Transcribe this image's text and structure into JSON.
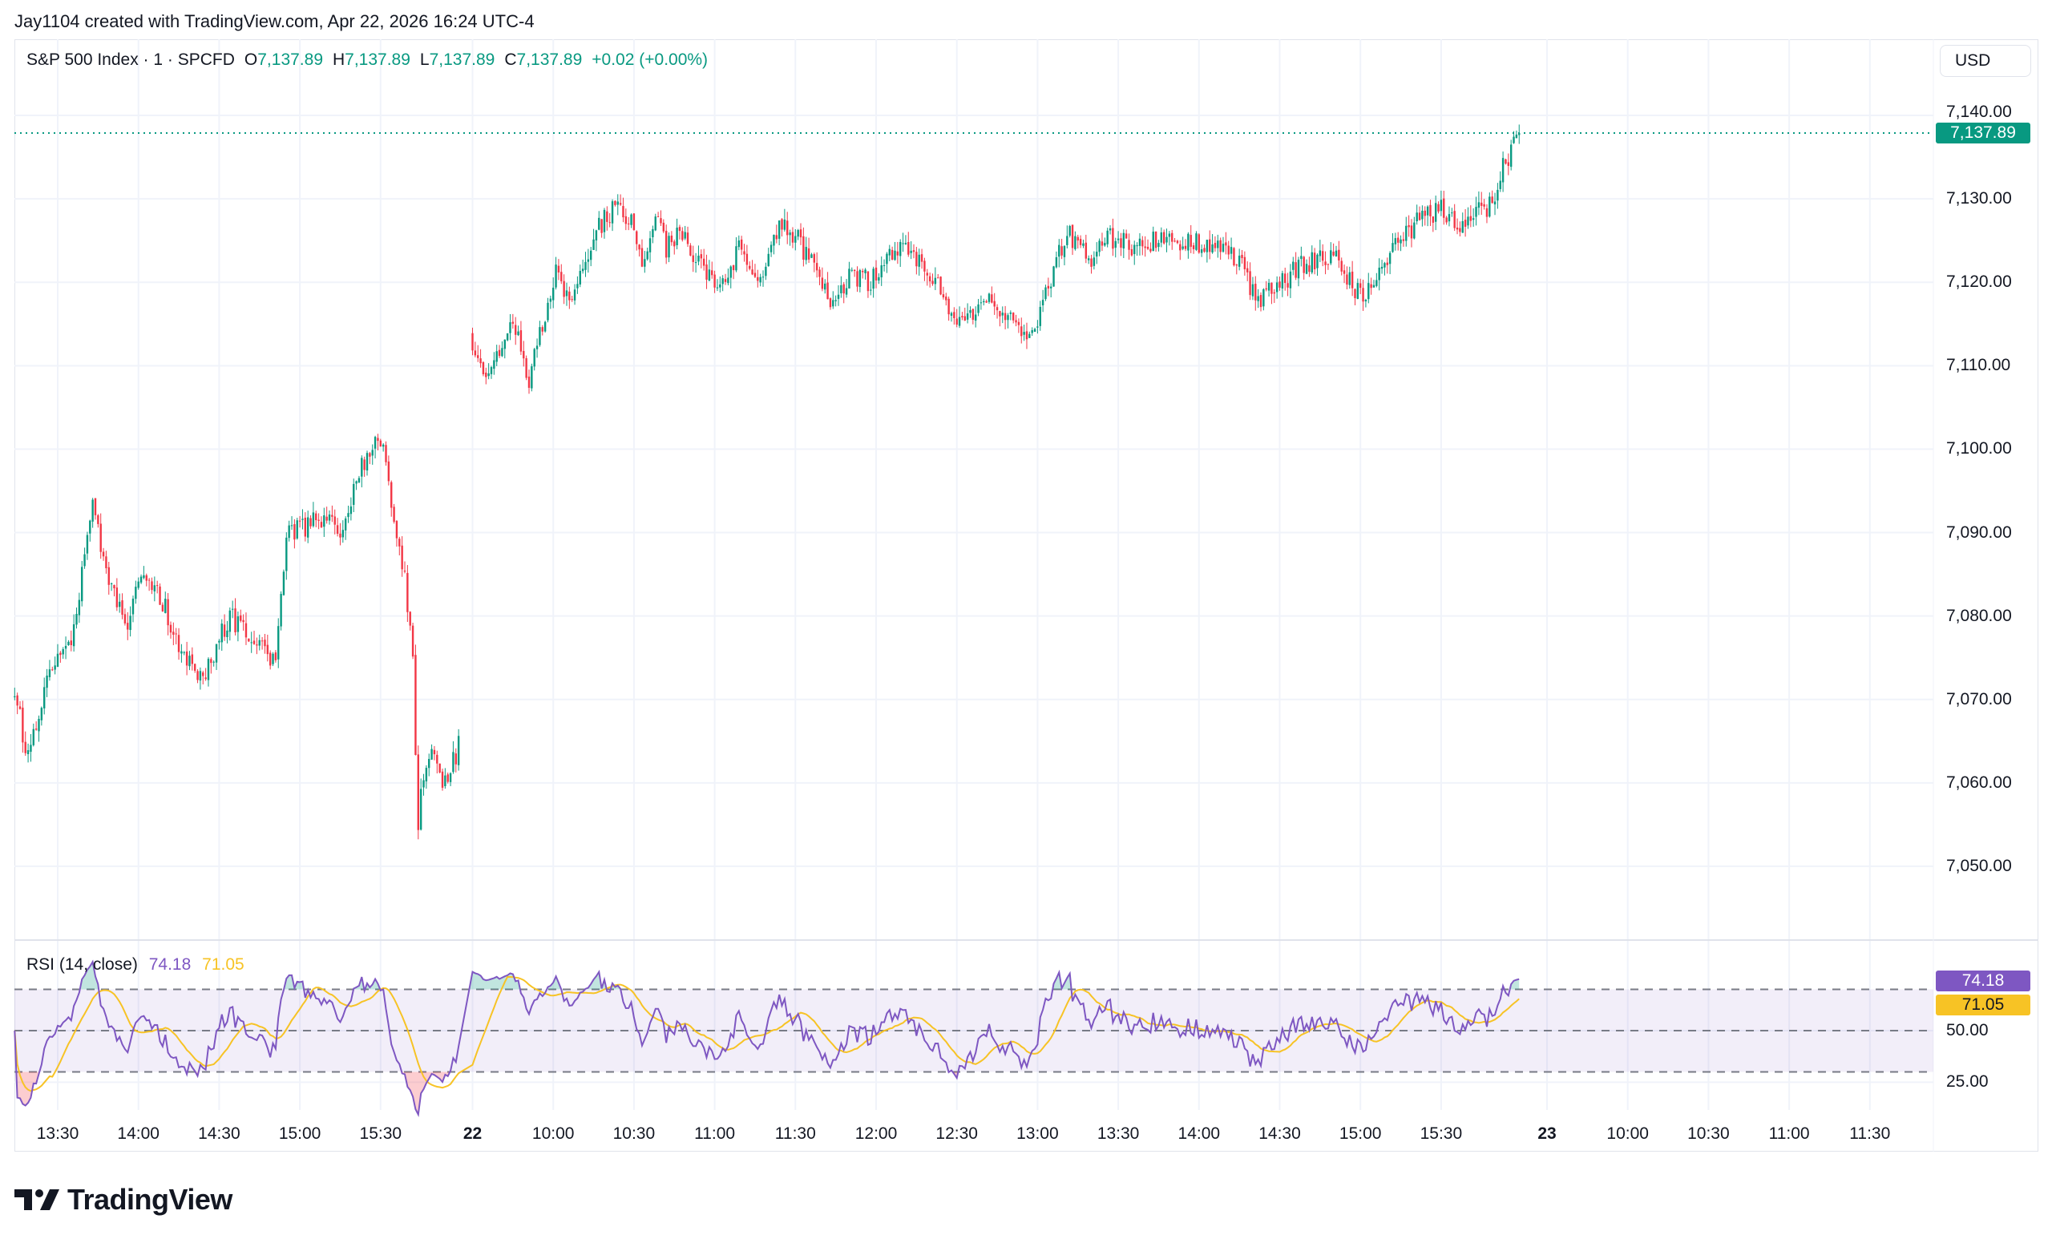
{
  "caption": "Jay1104 created with TradingView.com, Apr 22, 2026 16:24 UTC-4",
  "legend": {
    "symbol": "S&P 500 Index · 1 · SPCFD",
    "o_label": "O",
    "o_value": "7,137.89",
    "h_label": "H",
    "h_value": "7,137.89",
    "l_label": "L",
    "l_value": "7,137.89",
    "c_label": "C",
    "c_value": "7,137.89",
    "change": "+0.02 (+0.00%)"
  },
  "currency_button": "USD",
  "last_price_badge": "7,137.89",
  "rsi": {
    "label": "RSI (14, close)",
    "value": "74.18",
    "ma_value": "71.05",
    "axis_labels": [
      {
        "text": "50.00",
        "value": 50
      },
      {
        "text": "25.00",
        "value": 25
      }
    ],
    "levels": {
      "upper": 70,
      "middle": 50,
      "lower": 30
    }
  },
  "colors": {
    "up": "#089981",
    "down": "#f23645",
    "rsi": "#7e57c2",
    "rsi_ma": "#f7c325",
    "text": "#131722",
    "grid": "#f0f3fa"
  },
  "brand": "TradingView",
  "chart_data": {
    "type": "candlestick",
    "interval": "1 minute",
    "ylim": [
      7041,
      7145
    ],
    "y_ticks": [
      {
        "text": "7,140.00",
        "value": 7140
      },
      {
        "text": "7,130.00",
        "value": 7130
      },
      {
        "text": "7,120.00",
        "value": 7120
      },
      {
        "text": "7,110.00",
        "value": 7110
      },
      {
        "text": "7,100.00",
        "value": 7100
      },
      {
        "text": "7,090.00",
        "value": 7090
      },
      {
        "text": "7,080.00",
        "value": 7080
      },
      {
        "text": "7,070.00",
        "value": 7070
      },
      {
        "text": "7,060.00",
        "value": 7060
      },
      {
        "text": "7,050.00",
        "value": 7050
      }
    ],
    "x_ticks": [
      {
        "text": "13:30",
        "session": 1,
        "time": "13:30",
        "bold": false
      },
      {
        "text": "14:00",
        "session": 1,
        "time": "14:00",
        "bold": false
      },
      {
        "text": "14:30",
        "session": 1,
        "time": "14:30",
        "bold": false
      },
      {
        "text": "15:00",
        "session": 1,
        "time": "15:00",
        "bold": false
      },
      {
        "text": "15:30",
        "session": 1,
        "time": "15:30",
        "bold": false
      },
      {
        "text": "22",
        "session": 2,
        "time": "09:30",
        "bold": true
      },
      {
        "text": "10:00",
        "session": 2,
        "time": "10:00",
        "bold": false
      },
      {
        "text": "10:30",
        "session": 2,
        "time": "10:30",
        "bold": false
      },
      {
        "text": "11:00",
        "session": 2,
        "time": "11:00",
        "bold": false
      },
      {
        "text": "11:30",
        "session": 2,
        "time": "11:30",
        "bold": false
      },
      {
        "text": "12:00",
        "session": 2,
        "time": "12:00",
        "bold": false
      },
      {
        "text": "12:30",
        "session": 2,
        "time": "12:30",
        "bold": false
      },
      {
        "text": "13:00",
        "session": 2,
        "time": "13:00",
        "bold": false
      },
      {
        "text": "13:30",
        "session": 2,
        "time": "13:30",
        "bold": false
      },
      {
        "text": "14:00",
        "session": 2,
        "time": "14:00",
        "bold": false
      },
      {
        "text": "14:30",
        "session": 2,
        "time": "14:30",
        "bold": false
      },
      {
        "text": "15:00",
        "session": 2,
        "time": "15:00",
        "bold": false
      },
      {
        "text": "15:30",
        "session": 2,
        "time": "15:30",
        "bold": false
      },
      {
        "text": "23",
        "session": 3,
        "time": "09:30",
        "bold": true
      },
      {
        "text": "10:00",
        "session": 3,
        "time": "10:00",
        "bold": false
      },
      {
        "text": "10:30",
        "session": 3,
        "time": "10:30",
        "bold": false
      },
      {
        "text": "11:00",
        "session": 3,
        "time": "11:00",
        "bold": false
      },
      {
        "text": "11:30",
        "session": 3,
        "time": "11:30",
        "bold": false
      }
    ],
    "last_price": 7137.89,
    "approx_close_path": [
      {
        "session": 1,
        "points": [
          [
            "13:14",
            7070.7
          ],
          [
            "13:19",
            7063
          ],
          [
            "13:26",
            7072
          ],
          [
            "13:35",
            7077
          ],
          [
            "13:39",
            7085
          ],
          [
            "13:43",
            7093
          ],
          [
            "13:48",
            7086
          ],
          [
            "13:55",
            7078.5
          ],
          [
            "14:02",
            7086
          ],
          [
            "14:09",
            7081.7
          ],
          [
            "14:17",
            7074.6
          ],
          [
            "14:24",
            7073
          ],
          [
            "14:34",
            7080
          ],
          [
            "14:43",
            7077
          ],
          [
            "14:51",
            7074.6
          ],
          [
            "14:55",
            7089.5
          ],
          [
            "15:03",
            7091
          ],
          [
            "15:10",
            7092
          ],
          [
            "15:16",
            7089.5
          ],
          [
            "15:22",
            7097.4
          ],
          [
            "15:27",
            7100.5
          ],
          [
            "15:31",
            7100.5
          ],
          [
            "15:34",
            7094
          ],
          [
            "15:39",
            7085
          ],
          [
            "15:42",
            7074
          ],
          [
            "15:44",
            7055
          ],
          [
            "15:45",
            7059.7
          ],
          [
            "15:49",
            7064.4
          ],
          [
            "15:54",
            7059.7
          ],
          [
            "15:59",
            7064.4
          ]
        ]
      },
      {
        "session": 2,
        "points": [
          [
            "09:30",
            7113
          ],
          [
            "09:35",
            7108.3
          ],
          [
            "09:41",
            7113
          ],
          [
            "09:46",
            7114.6
          ],
          [
            "09:51",
            7108.3
          ],
          [
            "09:56",
            7114.6
          ],
          [
            "10:01",
            7121
          ],
          [
            "10:06",
            7117.7
          ],
          [
            "10:11",
            7122.4
          ],
          [
            "10:16",
            7126.4
          ],
          [
            "10:22",
            7128.7
          ],
          [
            "10:28",
            7128
          ],
          [
            "10:33",
            7122.4
          ],
          [
            "10:39",
            7128.7
          ],
          [
            "10:42",
            7124
          ],
          [
            "10:47",
            7126.4
          ],
          [
            "10:55",
            7121.7
          ],
          [
            "11:04",
            7119.3
          ],
          [
            "11:09",
            7124
          ],
          [
            "11:17",
            7121
          ],
          [
            "11:24",
            7127
          ],
          [
            "11:30",
            7125.5
          ],
          [
            "11:36",
            7122.4
          ],
          [
            "11:44",
            7117.7
          ],
          [
            "11:51",
            7121
          ],
          [
            "11:58",
            7120
          ],
          [
            "12:05",
            7124
          ],
          [
            "12:15",
            7123.2
          ],
          [
            "12:22",
            7120
          ],
          [
            "12:32",
            7114.6
          ],
          [
            "12:40",
            7118.5
          ],
          [
            "12:47",
            7116
          ],
          [
            "12:59",
            7113.8
          ],
          [
            "13:04",
            7119.3
          ],
          [
            "13:11",
            7126.4
          ],
          [
            "13:19",
            7122.4
          ],
          [
            "13:26",
            7125.5
          ],
          [
            "13:38",
            7124
          ],
          [
            "13:45",
            7125.5
          ],
          [
            "13:58",
            7124.8
          ],
          [
            "14:07",
            7124.8
          ],
          [
            "14:15",
            7122.4
          ],
          [
            "14:22",
            7117.7
          ],
          [
            "14:31",
            7120
          ],
          [
            "14:39",
            7122.4
          ],
          [
            "14:51",
            7123.2
          ],
          [
            "14:56",
            7120
          ],
          [
            "15:01",
            7117.7
          ],
          [
            "15:08",
            7122.4
          ],
          [
            "15:15",
            7124.8
          ],
          [
            "15:23",
            7128
          ],
          [
            "15:30",
            7128.7
          ],
          [
            "15:36",
            7126.4
          ],
          [
            "15:42",
            7128
          ],
          [
            "15:49",
            7129.5
          ],
          [
            "15:52",
            7133.4
          ],
          [
            "15:57",
            7136.2
          ],
          [
            "15:59",
            7137.89
          ]
        ]
      }
    ]
  }
}
